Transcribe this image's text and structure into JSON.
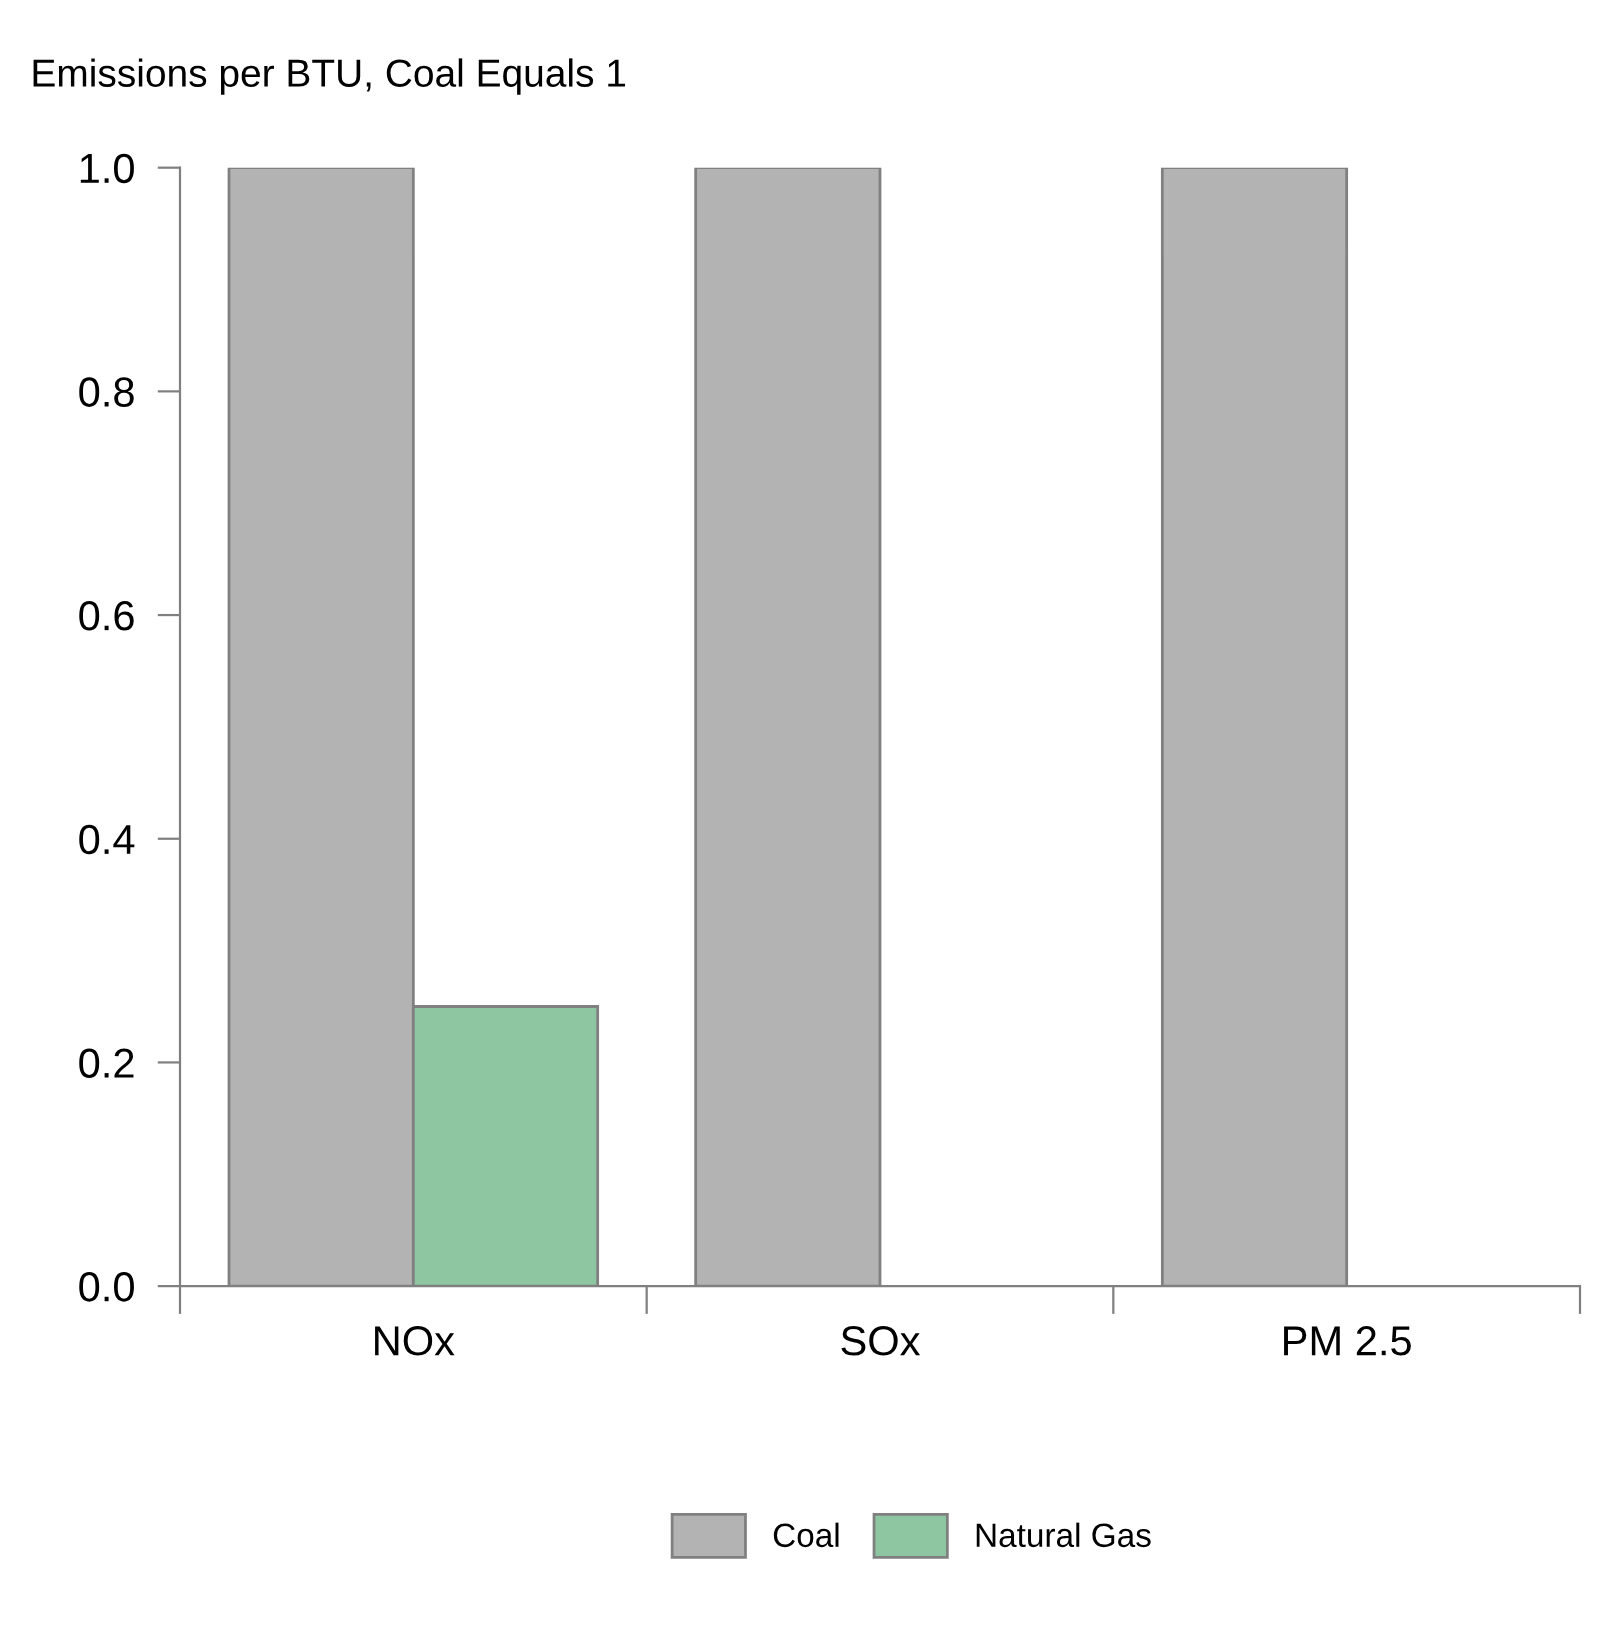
{
  "chart_data": {
    "type": "bar",
    "title": "Emissions per BTU, Coal Equals 1",
    "categories": [
      "NOx",
      "SOx",
      "PM 2.5"
    ],
    "series": [
      {
        "name": "Coal",
        "color": "#b3b3b3",
        "values": [
          1.0,
          1.0,
          1.0
        ]
      },
      {
        "name": "Natural Gas",
        "color": "#8dc6a0",
        "values": [
          0.25,
          null,
          null
        ]
      }
    ],
    "ylim": [
      0,
      1.0
    ],
    "yticks": [
      {
        "value": 0,
        "label": "0.0"
      },
      0.2,
      0.4,
      0.6,
      0.8,
      {
        "value": 1,
        "label": "1.0"
      }
    ],
    "grid": false,
    "legend": "bottom"
  }
}
